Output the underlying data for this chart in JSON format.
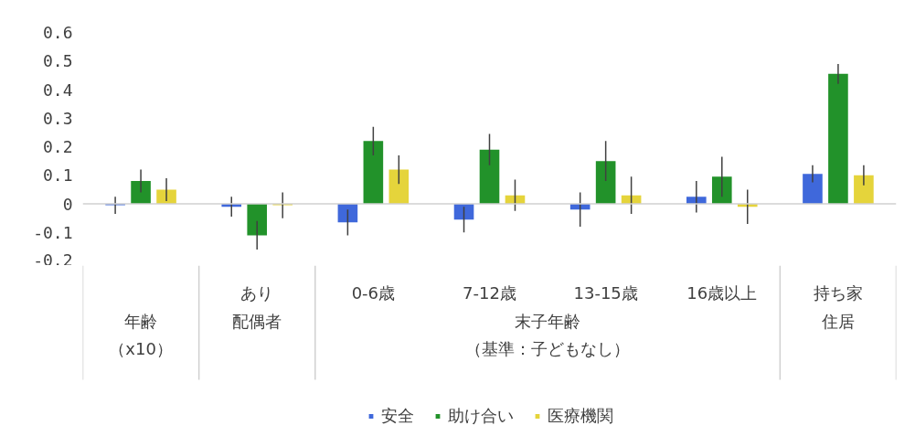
{
  "chart_data": {
    "type": "bar",
    "categories": [
      null,
      "あり",
      "0-6歳",
      "7-12歳",
      "13-15歳",
      "16歳以上",
      "持ち家"
    ],
    "series": [
      {
        "name": "安全",
        "color": "#3f68db",
        "values": [
          -0.005,
          -0.01,
          -0.065,
          -0.055,
          -0.02,
          0.025,
          0.105
        ],
        "errors": [
          0.03,
          0.035,
          0.045,
          0.045,
          0.06,
          0.055,
          0.03
        ]
      },
      {
        "name": "助け合い",
        "color": "#22922a",
        "values": [
          0.08,
          -0.11,
          0.22,
          0.19,
          0.15,
          0.095,
          0.455
        ],
        "errors": [
          0.04,
          0.05,
          0.05,
          0.055,
          0.07,
          0.07,
          0.035
        ]
      },
      {
        "name": "医療機関",
        "color": "#e5d43b",
        "values": [
          0.05,
          -0.005,
          0.12,
          0.03,
          0.03,
          -0.01,
          0.1
        ],
        "errors": [
          0.04,
          0.045,
          0.05,
          0.055,
          0.065,
          0.06,
          0.035
        ]
      }
    ],
    "annotations": [
      "年齢",
      "（x10）",
      "配偶者",
      "末子年齢",
      "（基準：子どもなし）",
      "住居"
    ],
    "ylim": [
      -0.2,
      0.6
    ],
    "yticks": [
      -0.2,
      -0.1,
      0,
      0.1,
      0.2,
      0.3,
      0.4,
      0.5,
      0.6
    ],
    "ref_lines": [
      {
        "axis": "y",
        "value": 0,
        "color": "#d0d0d0"
      }
    ],
    "legend": "bottom"
  }
}
